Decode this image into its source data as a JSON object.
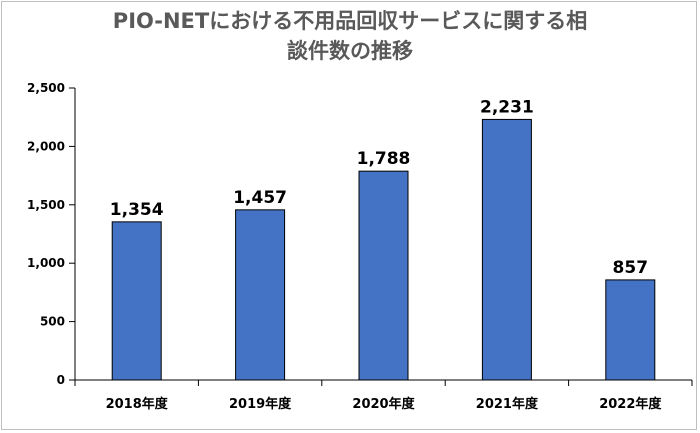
{
  "chart_data": {
    "type": "bar",
    "title_lines": [
      "PIO-NETにおける不用品回収サービスに関する相",
      "談件数の推移"
    ],
    "categories": [
      "2018年度",
      "2019年度",
      "2020年度",
      "2021年度",
      "2022年度"
    ],
    "values": [
      1354,
      1457,
      1788,
      2231,
      857
    ],
    "data_labels": [
      "1,354",
      "1,457",
      "1,788",
      "2,231",
      "857"
    ],
    "ylim": [
      0,
      2500
    ],
    "y_ticks": [
      0,
      500,
      1000,
      1500,
      2000,
      2500
    ],
    "y_tick_labels": [
      "0",
      "500",
      "1,000",
      "1,500",
      "2,000",
      "2,500"
    ],
    "grid": false,
    "bar_color": "#4472c4",
    "bar_edge_color": "#000000"
  }
}
